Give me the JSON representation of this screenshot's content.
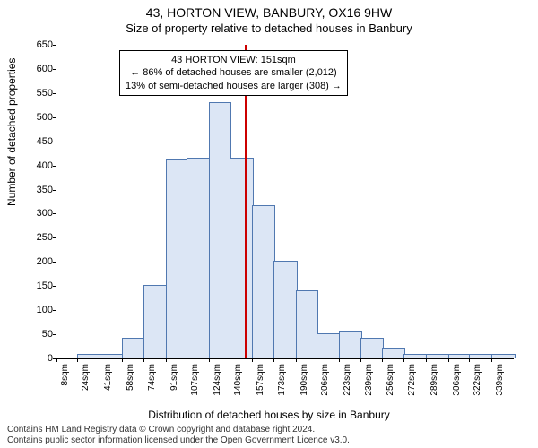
{
  "title": "43, HORTON VIEW, BANBURY, OX16 9HW",
  "subtitle": "Size of property relative to detached houses in Banbury",
  "ylabel": "Number of detached properties",
  "xlabel": "Distribution of detached houses by size in Banbury",
  "footer_line1": "Contains HM Land Registry data © Crown copyright and database right 2024.",
  "footer_line2": "Contains public sector information licensed under the Open Government Licence v3.0.",
  "annotation": {
    "line1": "43 HORTON VIEW: 151sqm",
    "line2": "← 86% of detached houses are smaller (2,012)",
    "line3": "13% of semi-detached houses are larger (308) →"
  },
  "chart": {
    "type": "histogram",
    "ylim": [
      0,
      650
    ],
    "ytick_step": 50,
    "bar_fill": "#dce6f5",
    "bar_stroke": "#5078b0",
    "refline_color": "#cc0000",
    "refline_x": 151,
    "background": "#ffffff",
    "x_categories": [
      "8sqm",
      "24sqm",
      "41sqm",
      "58sqm",
      "74sqm",
      "91sqm",
      "107sqm",
      "124sqm",
      "140sqm",
      "157sqm",
      "173sqm",
      "190sqm",
      "206sqm",
      "223sqm",
      "239sqm",
      "256sqm",
      "272sqm",
      "289sqm",
      "306sqm",
      "322sqm",
      "339sqm"
    ],
    "x_edges": [
      8,
      24,
      41,
      58,
      74,
      91,
      107,
      124,
      140,
      157,
      173,
      190,
      206,
      223,
      239,
      256,
      272,
      289,
      306,
      322,
      339,
      356
    ],
    "values": [
      0,
      8,
      8,
      40,
      150,
      410,
      415,
      530,
      415,
      315,
      200,
      140,
      50,
      55,
      40,
      20,
      8,
      8,
      8,
      8,
      8
    ]
  }
}
